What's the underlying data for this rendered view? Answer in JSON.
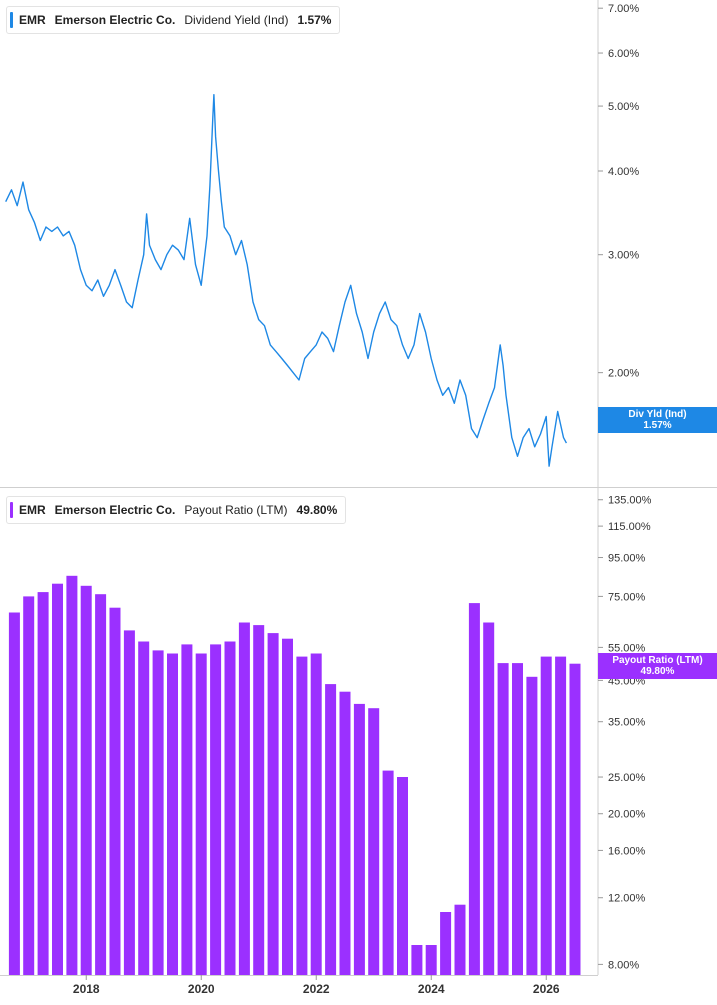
{
  "colors": {
    "yield": "#1e88e5",
    "payout": "#9b30ff",
    "grid": "#e6e6e6"
  },
  "legend_top": {
    "ticker": "EMR",
    "company": "Emerson Electric Co.",
    "metric": "Dividend Yield (Ind)",
    "value": "1.57%"
  },
  "legend_bottom": {
    "ticker": "EMR",
    "company": "Emerson Electric Co.",
    "metric": "Payout Ratio (LTM)",
    "value": "49.80%"
  },
  "badge_top": {
    "line1": "Div Yld (Ind)",
    "line2": "1.57%"
  },
  "badge_bottom": {
    "line1": "Payout Ratio (LTM)",
    "line2": "49.80%"
  },
  "chart_data": [
    {
      "type": "line",
      "scale": "log",
      "series": [
        {
          "name": "Dividend Yield (Ind)",
          "points": [
            [
              2016.6,
              3.6
            ],
            [
              2016.7,
              3.75
            ],
            [
              2016.8,
              3.55
            ],
            [
              2016.9,
              3.85
            ],
            [
              2017.0,
              3.5
            ],
            [
              2017.1,
              3.35
            ],
            [
              2017.2,
              3.15
            ],
            [
              2017.3,
              3.3
            ],
            [
              2017.4,
              3.25
            ],
            [
              2017.5,
              3.3
            ],
            [
              2017.6,
              3.2
            ],
            [
              2017.7,
              3.25
            ],
            [
              2017.8,
              3.1
            ],
            [
              2017.9,
              2.85
            ],
            [
              2018.0,
              2.7
            ],
            [
              2018.1,
              2.65
            ],
            [
              2018.2,
              2.75
            ],
            [
              2018.3,
              2.6
            ],
            [
              2018.4,
              2.7
            ],
            [
              2018.5,
              2.85
            ],
            [
              2018.6,
              2.7
            ],
            [
              2018.7,
              2.55
            ],
            [
              2018.8,
              2.5
            ],
            [
              2018.9,
              2.75
            ],
            [
              2019.0,
              3.0
            ],
            [
              2019.05,
              3.45
            ],
            [
              2019.1,
              3.1
            ],
            [
              2019.2,
              2.95
            ],
            [
              2019.3,
              2.85
            ],
            [
              2019.4,
              3.0
            ],
            [
              2019.5,
              3.1
            ],
            [
              2019.6,
              3.05
            ],
            [
              2019.7,
              2.95
            ],
            [
              2019.8,
              3.4
            ],
            [
              2019.9,
              2.9
            ],
            [
              2020.0,
              2.7
            ],
            [
              2020.1,
              3.2
            ],
            [
              2020.15,
              3.8
            ],
            [
              2020.2,
              4.8
            ],
            [
              2020.22,
              5.2
            ],
            [
              2020.25,
              4.5
            ],
            [
              2020.3,
              4.0
            ],
            [
              2020.35,
              3.6
            ],
            [
              2020.4,
              3.3
            ],
            [
              2020.5,
              3.2
            ],
            [
              2020.6,
              3.0
            ],
            [
              2020.7,
              3.15
            ],
            [
              2020.8,
              2.9
            ],
            [
              2020.9,
              2.55
            ],
            [
              2021.0,
              2.4
            ],
            [
              2021.1,
              2.35
            ],
            [
              2021.2,
              2.2
            ],
            [
              2021.3,
              2.15
            ],
            [
              2021.4,
              2.1
            ],
            [
              2021.5,
              2.05
            ],
            [
              2021.6,
              2.0
            ],
            [
              2021.7,
              1.95
            ],
            [
              2021.8,
              2.1
            ],
            [
              2021.9,
              2.15
            ],
            [
              2022.0,
              2.2
            ],
            [
              2022.1,
              2.3
            ],
            [
              2022.2,
              2.25
            ],
            [
              2022.3,
              2.15
            ],
            [
              2022.4,
              2.35
            ],
            [
              2022.5,
              2.55
            ],
            [
              2022.6,
              2.7
            ],
            [
              2022.7,
              2.45
            ],
            [
              2022.8,
              2.3
            ],
            [
              2022.9,
              2.1
            ],
            [
              2023.0,
              2.3
            ],
            [
              2023.1,
              2.45
            ],
            [
              2023.2,
              2.55
            ],
            [
              2023.3,
              2.4
            ],
            [
              2023.4,
              2.35
            ],
            [
              2023.5,
              2.2
            ],
            [
              2023.6,
              2.1
            ],
            [
              2023.7,
              2.2
            ],
            [
              2023.8,
              2.45
            ],
            [
              2023.9,
              2.3
            ],
            [
              2024.0,
              2.1
            ],
            [
              2024.1,
              1.95
            ],
            [
              2024.2,
              1.85
            ],
            [
              2024.3,
              1.9
            ],
            [
              2024.4,
              1.8
            ],
            [
              2024.5,
              1.95
            ],
            [
              2024.6,
              1.85
            ],
            [
              2024.7,
              1.65
            ],
            [
              2024.8,
              1.6
            ],
            [
              2024.9,
              1.7
            ],
            [
              2025.0,
              1.8
            ],
            [
              2025.1,
              1.9
            ],
            [
              2025.2,
              2.2
            ],
            [
              2025.25,
              2.05
            ],
            [
              2025.3,
              1.85
            ],
            [
              2025.4,
              1.6
            ],
            [
              2025.5,
              1.5
            ],
            [
              2025.6,
              1.6
            ],
            [
              2025.7,
              1.65
            ],
            [
              2025.8,
              1.55
            ],
            [
              2025.9,
              1.62
            ],
            [
              2026.0,
              1.72
            ],
            [
              2026.05,
              1.45
            ],
            [
              2026.1,
              1.55
            ],
            [
              2026.2,
              1.75
            ],
            [
              2026.3,
              1.6
            ],
            [
              2026.35,
              1.57
            ]
          ]
        }
      ],
      "yticks": [
        "7.00%",
        "6.00%",
        "5.00%",
        "4.00%",
        "3.00%",
        "2.00%"
      ],
      "ytick_values": [
        7,
        6,
        5,
        4,
        3,
        2
      ],
      "ylim": [
        1.35,
        7.2
      ]
    },
    {
      "type": "bar",
      "scale": "log",
      "series": [
        {
          "name": "Payout Ratio (LTM)",
          "points": [
            [
              2016.75,
              68
            ],
            [
              2017.0,
              75
            ],
            [
              2017.25,
              77
            ],
            [
              2017.5,
              81
            ],
            [
              2017.75,
              85
            ],
            [
              2018.0,
              80
            ],
            [
              2018.25,
              76
            ],
            [
              2018.5,
              70
            ],
            [
              2018.75,
              61
            ],
            [
              2019.0,
              57
            ],
            [
              2019.25,
              54
            ],
            [
              2019.5,
              53
            ],
            [
              2019.75,
              56
            ],
            [
              2020.0,
              53
            ],
            [
              2020.25,
              56
            ],
            [
              2020.5,
              57
            ],
            [
              2020.75,
              64
            ],
            [
              2021.0,
              63
            ],
            [
              2021.25,
              60
            ],
            [
              2021.5,
              58
            ],
            [
              2021.75,
              52
            ],
            [
              2022.0,
              53
            ],
            [
              2022.25,
              44
            ],
            [
              2022.5,
              42
            ],
            [
              2022.75,
              39
            ],
            [
              2023.0,
              38
            ],
            [
              2023.25,
              26
            ],
            [
              2023.5,
              25
            ],
            [
              2023.75,
              9
            ],
            [
              2024.0,
              9
            ],
            [
              2024.25,
              11
            ],
            [
              2024.5,
              11.5
            ],
            [
              2024.75,
              72
            ],
            [
              2025.0,
              64
            ],
            [
              2025.25,
              50
            ],
            [
              2025.5,
              50
            ],
            [
              2025.75,
              46
            ],
            [
              2026.0,
              52
            ],
            [
              2026.25,
              52
            ],
            [
              2026.5,
              49.8
            ]
          ]
        }
      ],
      "yticks": [
        "135.00%",
        "115.00%",
        "95.00%",
        "75.00%",
        "55.00%",
        "45.00%",
        "35.00%",
        "25.00%",
        "20.00%",
        "16.00%",
        "12.00%",
        "8.00%"
      ],
      "ytick_values": [
        135,
        115,
        95,
        75,
        55,
        45,
        35,
        25,
        20,
        16,
        12,
        8
      ],
      "ylim": [
        7.5,
        145
      ]
    }
  ],
  "x_axis": {
    "ticks": [
      "2018",
      "2020",
      "2022",
      "2024",
      "2026"
    ],
    "tick_values": [
      2018,
      2020,
      2022,
      2024,
      2026
    ],
    "xlim": [
      2016.5,
      2026.9
    ]
  }
}
